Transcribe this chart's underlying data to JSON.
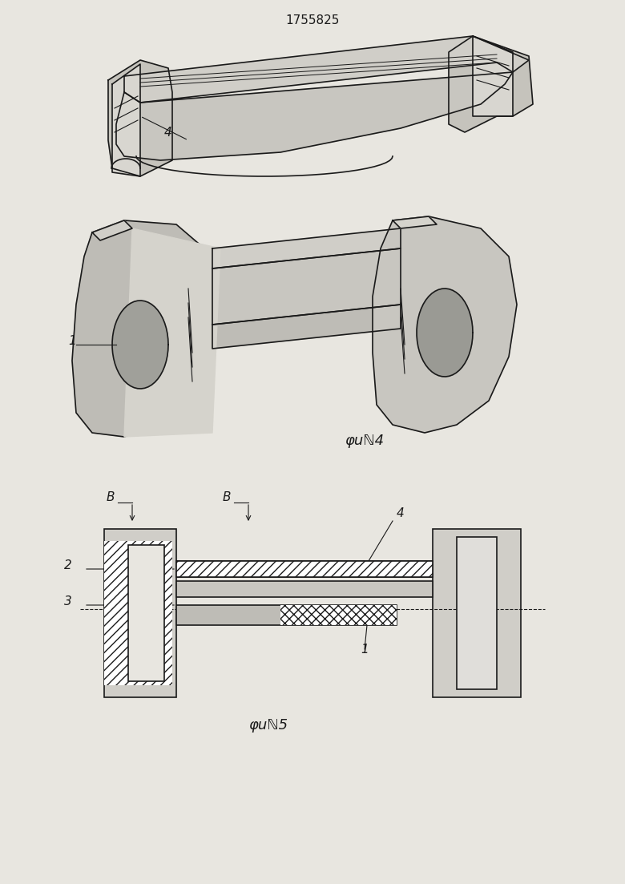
{
  "title": "1755825",
  "fig4_label": "φuℕ4",
  "fig5_label": "φuℕ5",
  "bg_color": "#e8e6e0",
  "line_color": "#1a1a1a",
  "hatch_color": "#1a1a1a",
  "label_1": "1",
  "label_2": "2",
  "label_3": "3",
  "label_4": "4",
  "label_B1": "B",
  "label_B2": "B"
}
